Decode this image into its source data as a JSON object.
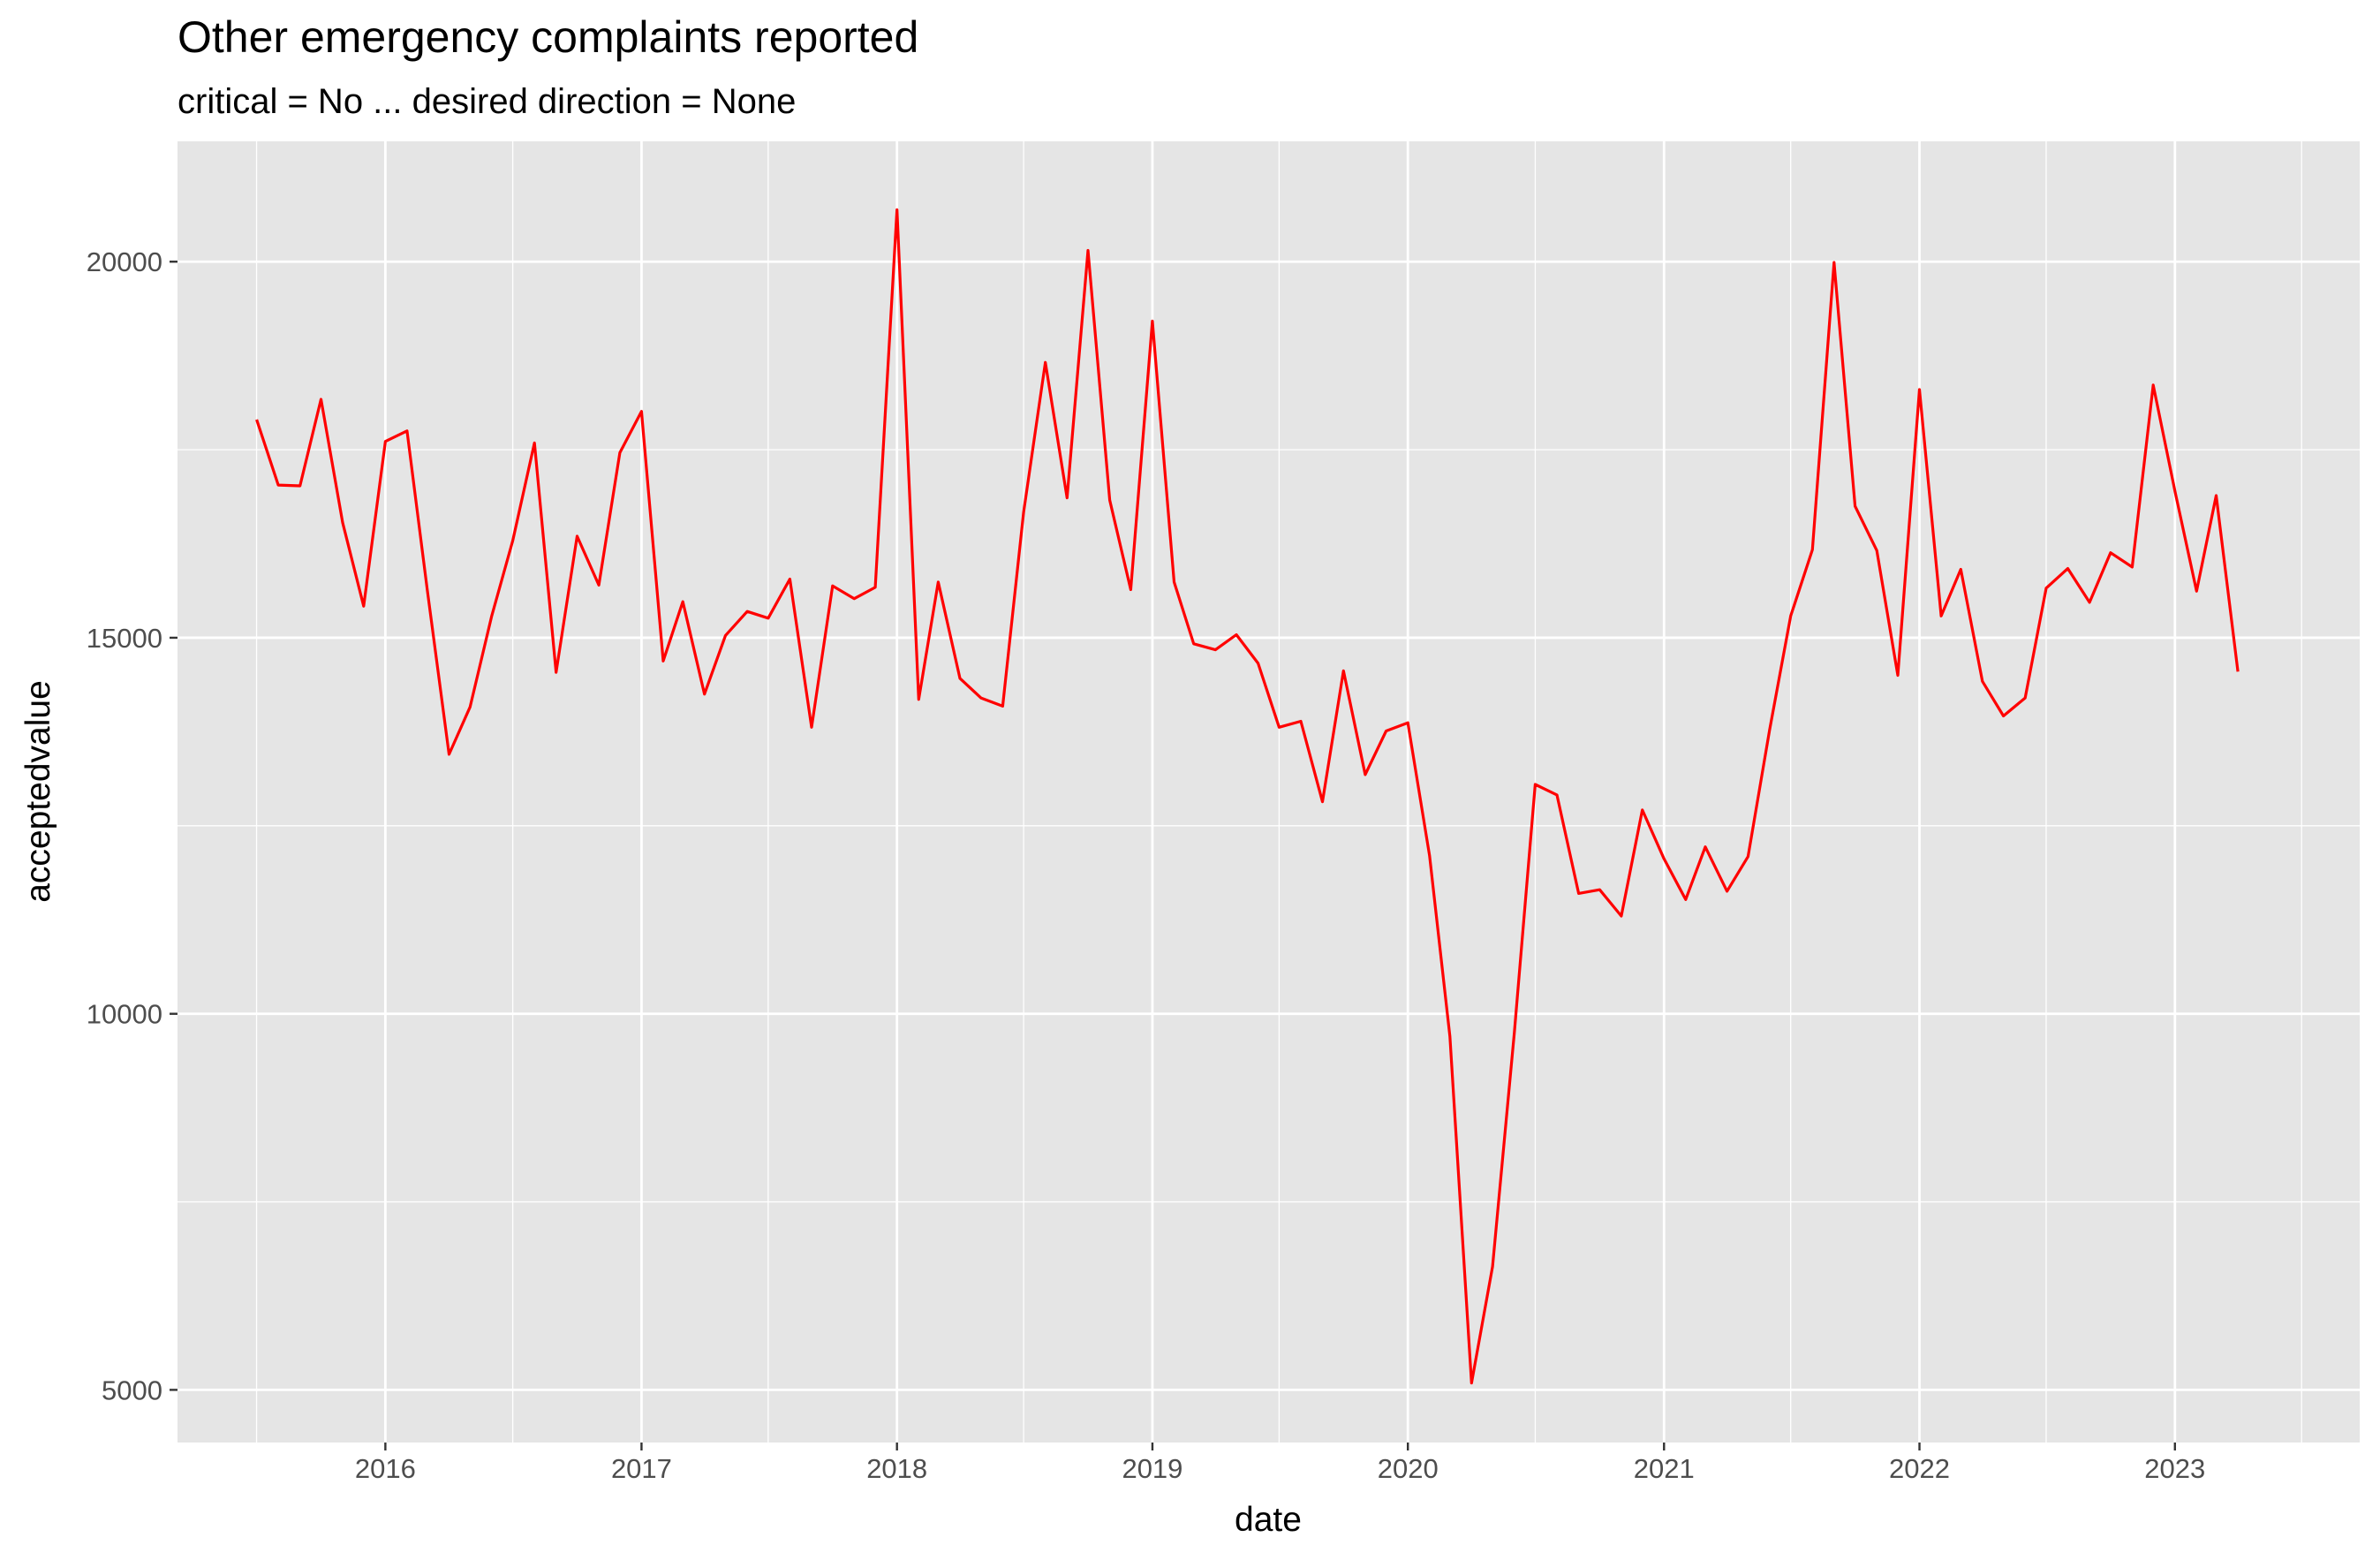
{
  "chart_data": {
    "type": "line",
    "title": "Other emergency complaints reported",
    "subtitle": "critical = No ... desired direction = None",
    "xlabel": "date",
    "ylabel": "acceptedvalue",
    "x_ticks": [
      "2016",
      "2017",
      "2018",
      "2019",
      "2020",
      "2021",
      "2022",
      "2023"
    ],
    "y_ticks": [
      5000,
      10000,
      15000,
      20000
    ],
    "xlim": [
      "2015-03-10",
      "2023-09-22"
    ],
    "ylim": [
      4300,
      21600
    ],
    "grid": true,
    "legend": "none",
    "series": [
      {
        "color": "#ff0000",
        "x": [
          "2015-07-01",
          "2015-08-01",
          "2015-09-01",
          "2015-10-01",
          "2015-11-01",
          "2015-12-01",
          "2016-01-01",
          "2016-02-01",
          "2016-03-01",
          "2016-04-01",
          "2016-05-01",
          "2016-06-01",
          "2016-07-01",
          "2016-08-01",
          "2016-09-01",
          "2016-10-01",
          "2016-11-01",
          "2016-12-01",
          "2017-01-01",
          "2017-02-01",
          "2017-03-01",
          "2017-04-01",
          "2017-05-01",
          "2017-06-01",
          "2017-07-01",
          "2017-08-01",
          "2017-09-01",
          "2017-10-01",
          "2017-11-01",
          "2017-12-01",
          "2018-01-01",
          "2018-02-01",
          "2018-03-01",
          "2018-04-01",
          "2018-05-01",
          "2018-06-01",
          "2018-07-01",
          "2018-08-01",
          "2018-09-01",
          "2018-10-01",
          "2018-11-01",
          "2018-12-01",
          "2019-01-01",
          "2019-02-01",
          "2019-03-01",
          "2019-04-01",
          "2019-05-01",
          "2019-06-01",
          "2019-07-01",
          "2019-08-01",
          "2019-09-01",
          "2019-10-01",
          "2019-11-01",
          "2019-12-01",
          "2020-01-01",
          "2020-02-01",
          "2020-03-01",
          "2020-04-01",
          "2020-05-01",
          "2020-06-01",
          "2020-07-01",
          "2020-08-01",
          "2020-09-01",
          "2020-10-01",
          "2020-11-01",
          "2020-12-01",
          "2021-01-01",
          "2021-02-01",
          "2021-03-01",
          "2021-04-01",
          "2021-05-01",
          "2021-06-01",
          "2021-07-01",
          "2021-08-01",
          "2021-09-01",
          "2021-10-01",
          "2021-11-01",
          "2021-12-01",
          "2022-01-01",
          "2022-02-01",
          "2022-03-01",
          "2022-04-01",
          "2022-05-01",
          "2022-06-01",
          "2022-07-01",
          "2022-08-01",
          "2022-09-01",
          "2022-10-01",
          "2022-11-01",
          "2022-12-01",
          "2023-01-01",
          "2023-02-01",
          "2023-03-01",
          "2023-04-01"
        ],
        "values": [
          17900,
          17030,
          17020,
          18170,
          16530,
          15420,
          17610,
          17750,
          15630,
          13450,
          14080,
          15290,
          16290,
          17590,
          14540,
          16350,
          15700,
          17460,
          18010,
          14690,
          15480,
          14250,
          15030,
          15350,
          15260,
          15780,
          13810,
          15690,
          15520,
          15670,
          20690,
          14180,
          15740,
          14460,
          14200,
          14090,
          16670,
          18660,
          16860,
          20150,
          16830,
          15640,
          19210,
          15740,
          14920,
          14840,
          15040,
          14660,
          13810,
          13890,
          12820,
          14560,
          13180,
          13760,
          13870,
          12100,
          9700,
          5090,
          6640,
          9740,
          13050,
          12910,
          11600,
          11650,
          11300,
          12710,
          12060,
          11520,
          12220,
          11630,
          12090,
          13780,
          15290,
          16170,
          19990,
          16750,
          16160,
          14500,
          18300,
          15290,
          15910,
          14420,
          13960,
          14200,
          15660,
          15920,
          15470,
          16130,
          15940,
          18360,
          16950,
          15620,
          16890,
          14550
        ]
      }
    ]
  }
}
